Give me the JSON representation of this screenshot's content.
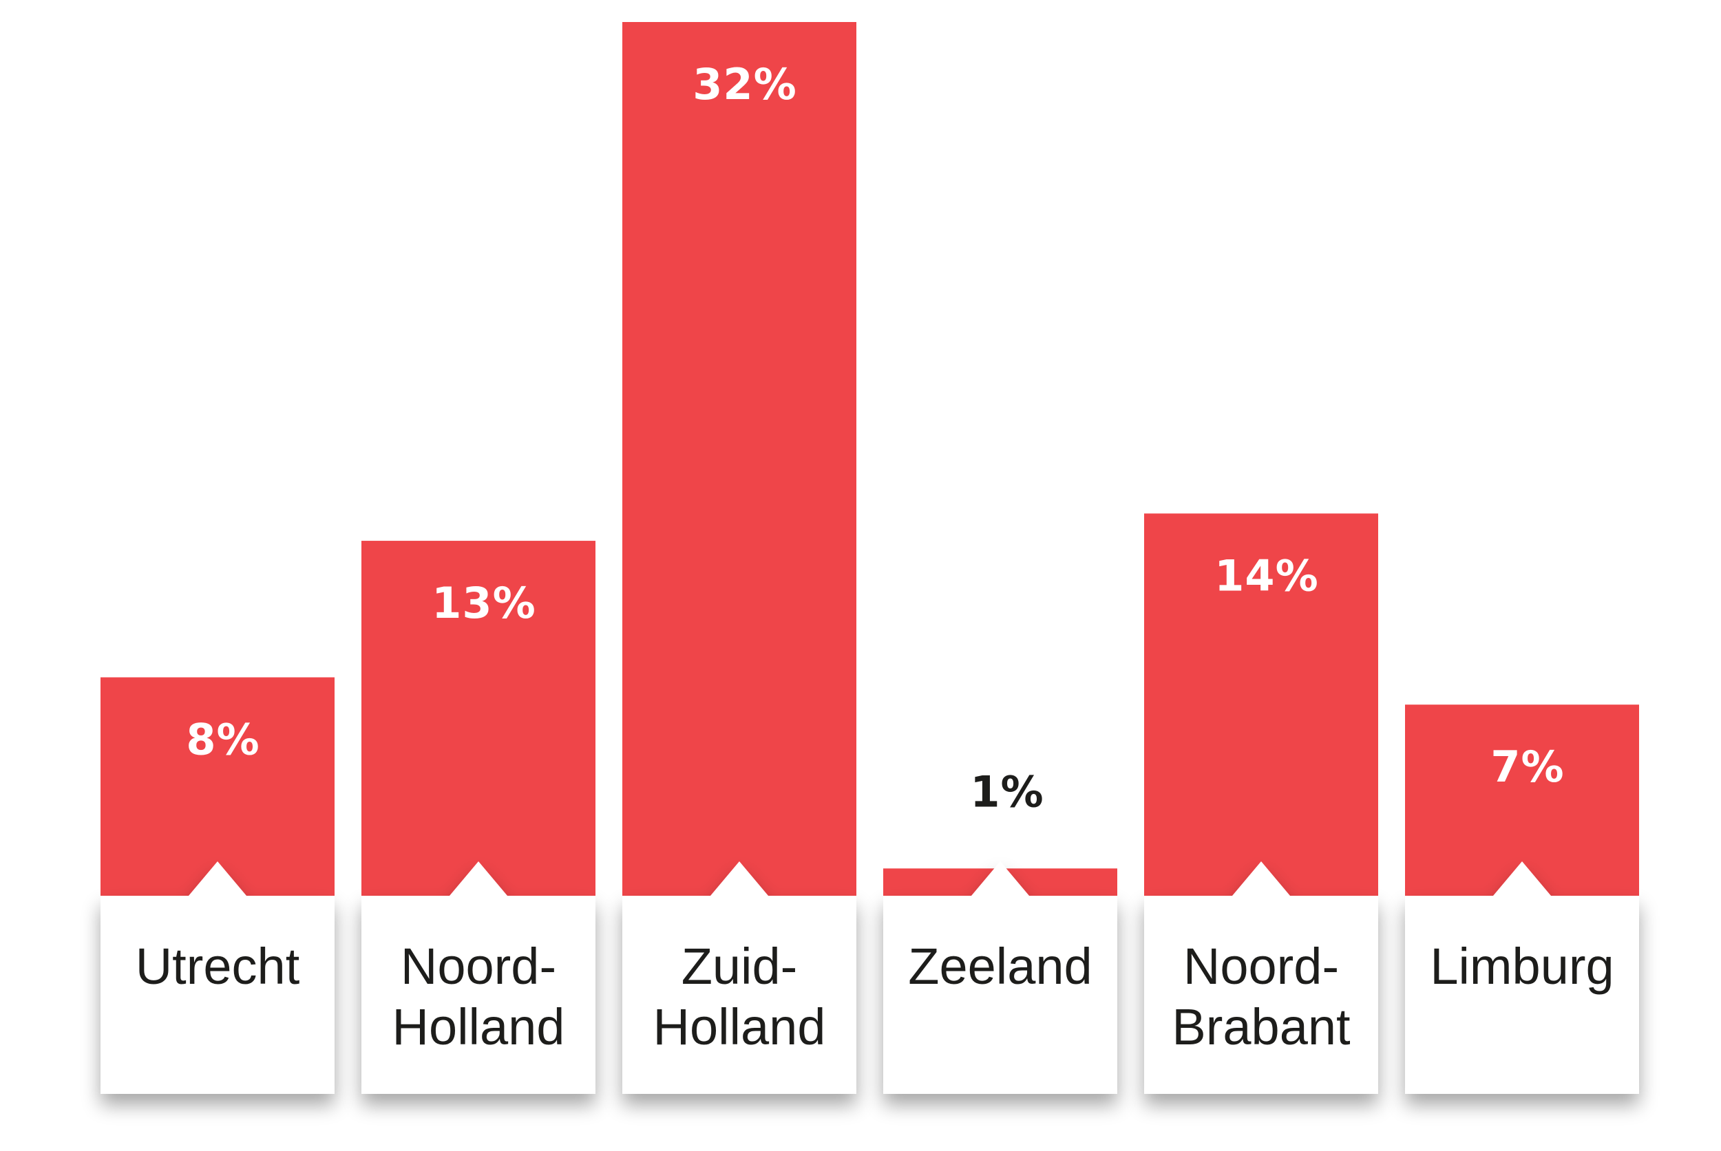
{
  "chart_data": {
    "type": "bar",
    "title": "",
    "xlabel": "",
    "ylabel": "",
    "ylim": [
      0,
      32
    ],
    "grid": false,
    "legend": "none",
    "categories": [
      [
        "Utrecht"
      ],
      [
        "Noord-",
        "Holland"
      ],
      [
        "Zuid-",
        "Holland"
      ],
      [
        "Zeeland"
      ],
      [
        "Noord-",
        "Brabant"
      ],
      [
        "Limburg"
      ]
    ],
    "values": [
      8,
      13,
      32,
      1,
      14,
      7
    ],
    "value_labels": [
      "8%",
      "13%",
      "32%",
      "1%",
      "14%",
      "7%"
    ],
    "colors": {
      "bar": "#ef4549",
      "label_inside": "#ffffff",
      "label_outside": "#1d1d1b",
      "card": "#ffffff"
    }
  }
}
